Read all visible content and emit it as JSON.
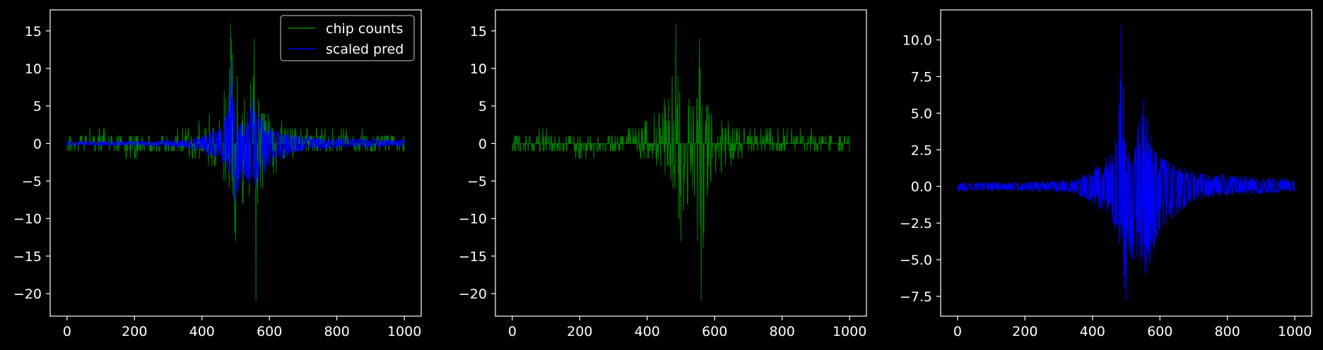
{
  "figure": {
    "background": "#000000",
    "foreground": "#ffffff",
    "series_colors": {
      "chip_counts": "#008000",
      "scaled_pred": "#0000ff"
    }
  },
  "chart_data": [
    {
      "type": "line",
      "title": "",
      "xlabel": "",
      "ylabel": "",
      "xlim": [
        -50,
        1050
      ],
      "ylim": [
        -23,
        17.8
      ],
      "xticks": [
        0,
        200,
        400,
        600,
        800,
        1000
      ],
      "yticks": [
        15,
        10,
        5,
        0,
        -5,
        -10,
        -15,
        -20
      ],
      "grid": false,
      "legend": {
        "placement": "top-right",
        "entries": [
          "chip counts",
          "scaled pred"
        ]
      },
      "series": [
        {
          "name": "chip counts",
          "color": "#008000",
          "x_range": [
            0,
            1000
          ],
          "envelope_max": [
            [
              0,
              1
            ],
            [
              100,
              2
            ],
            [
              200,
              1
            ],
            [
              300,
              1
            ],
            [
              380,
              3
            ],
            [
              440,
              5
            ],
            [
              470,
              7
            ],
            [
              485,
              16
            ],
            [
              500,
              13
            ],
            [
              520,
              7
            ],
            [
              540,
              6
            ],
            [
              555,
              14
            ],
            [
              580,
              6
            ],
            [
              620,
              3
            ],
            [
              700,
              2
            ],
            [
              800,
              2
            ],
            [
              1000,
              1
            ]
          ],
          "envelope_min": [
            [
              0,
              -1
            ],
            [
              100,
              -1
            ],
            [
              200,
              -2
            ],
            [
              300,
              -1
            ],
            [
              380,
              -2
            ],
            [
              440,
              -3
            ],
            [
              470,
              -5
            ],
            [
              500,
              -13
            ],
            [
              520,
              -8
            ],
            [
              540,
              -7
            ],
            [
              560,
              -21
            ],
            [
              580,
              -6
            ],
            [
              620,
              -4
            ],
            [
              700,
              -1
            ],
            [
              800,
              -1
            ],
            [
              1000,
              -1
            ]
          ]
        },
        {
          "name": "scaled pred",
          "color": "#0000ff",
          "x_range": [
            0,
            1000
          ],
          "envelope_max": [
            [
              0,
              0.3
            ],
            [
              200,
              0.3
            ],
            [
              350,
              0.5
            ],
            [
              420,
              1.5
            ],
            [
              460,
              2.5
            ],
            [
              480,
              7
            ],
            [
              485,
              11
            ],
            [
              500,
              3
            ],
            [
              520,
              2.5
            ],
            [
              550,
              6
            ],
            [
              600,
              2
            ],
            [
              700,
              1
            ],
            [
              800,
              0.8
            ],
            [
              1000,
              0.5
            ]
          ],
          "envelope_min": [
            [
              0,
              -0.3
            ],
            [
              200,
              -0.3
            ],
            [
              350,
              -0.5
            ],
            [
              420,
              -1.5
            ],
            [
              460,
              -2.5
            ],
            [
              480,
              -4
            ],
            [
              500,
              -7.8
            ],
            [
              520,
              -5
            ],
            [
              560,
              -6
            ],
            [
              600,
              -3
            ],
            [
              700,
              -1
            ],
            [
              800,
              -0.6
            ],
            [
              1000,
              -0.4
            ]
          ]
        }
      ]
    },
    {
      "type": "line",
      "title": "",
      "xlabel": "",
      "ylabel": "",
      "xlim": [
        -50,
        1050
      ],
      "ylim": [
        -23,
        17.8
      ],
      "xticks": [
        0,
        200,
        400,
        600,
        800,
        1000
      ],
      "yticks": [
        15,
        10,
        5,
        0,
        -5,
        -10,
        -15,
        -20
      ],
      "grid": false,
      "series": [
        {
          "color": "#008000",
          "x_range": [
            0,
            1000
          ],
          "envelope_max": [
            [
              0,
              1
            ],
            [
              100,
              2
            ],
            [
              200,
              1
            ],
            [
              300,
              1
            ],
            [
              380,
              3
            ],
            [
              440,
              5
            ],
            [
              470,
              7
            ],
            [
              485,
              16
            ],
            [
              500,
              13
            ],
            [
              520,
              7
            ],
            [
              540,
              6
            ],
            [
              555,
              14
            ],
            [
              580,
              6
            ],
            [
              620,
              3
            ],
            [
              700,
              2
            ],
            [
              800,
              2
            ],
            [
              1000,
              1
            ]
          ],
          "envelope_min": [
            [
              0,
              -1
            ],
            [
              100,
              -1
            ],
            [
              200,
              -2
            ],
            [
              300,
              -1
            ],
            [
              380,
              -2
            ],
            [
              440,
              -3
            ],
            [
              470,
              -5
            ],
            [
              500,
              -13
            ],
            [
              520,
              -8
            ],
            [
              540,
              -7
            ],
            [
              560,
              -21
            ],
            [
              580,
              -6
            ],
            [
              620,
              -4
            ],
            [
              700,
              -1
            ],
            [
              800,
              -1
            ],
            [
              1000,
              -1
            ]
          ]
        }
      ]
    },
    {
      "type": "line",
      "title": "",
      "xlabel": "",
      "ylabel": "",
      "xlim": [
        -50,
        1050
      ],
      "ylim": [
        -8.85,
        12.05
      ],
      "xticks": [
        0,
        200,
        400,
        600,
        800,
        1000
      ],
      "yticks": [
        10.0,
        7.5,
        5.0,
        2.5,
        0.0,
        -2.5,
        -5.0,
        -7.5
      ],
      "ytick_labels": [
        "10.0",
        "7.5",
        "5.0",
        "2.5",
        "0.0",
        "−2.5",
        "−5.0",
        "−7.5"
      ],
      "grid": false,
      "series": [
        {
          "color": "#0000ff",
          "x_range": [
            0,
            1000
          ],
          "envelope_max": [
            [
              0,
              0.3
            ],
            [
              200,
              0.3
            ],
            [
              350,
              0.5
            ],
            [
              420,
              1.5
            ],
            [
              460,
              2.5
            ],
            [
              480,
              7
            ],
            [
              485,
              11
            ],
            [
              500,
              3
            ],
            [
              520,
              2.5
            ],
            [
              550,
              6
            ],
            [
              600,
              2
            ],
            [
              700,
              1
            ],
            [
              800,
              0.8
            ],
            [
              1000,
              0.5
            ]
          ],
          "envelope_min": [
            [
              0,
              -0.3
            ],
            [
              200,
              -0.3
            ],
            [
              350,
              -0.5
            ],
            [
              420,
              -1.5
            ],
            [
              460,
              -2.5
            ],
            [
              480,
              -4
            ],
            [
              500,
              -7.8
            ],
            [
              520,
              -5
            ],
            [
              560,
              -6
            ],
            [
              600,
              -3
            ],
            [
              700,
              -1
            ],
            [
              800,
              -0.6
            ],
            [
              1000,
              -0.4
            ]
          ]
        }
      ]
    }
  ]
}
